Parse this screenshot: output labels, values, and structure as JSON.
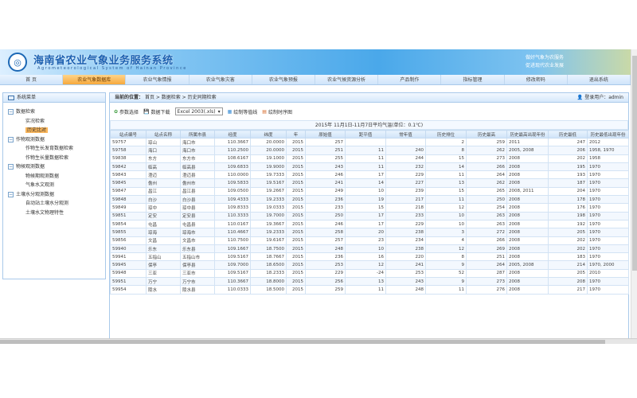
{
  "header": {
    "title": "海南省农业气象业务服务系统",
    "subtitle": "Agrometeorological System of Hainan Province",
    "slogan_line1": "做好气象为农服务",
    "slogan_line2": "促进现代农业发展"
  },
  "nav": [
    "首 页",
    "农业气象数据库",
    "农业气象情报",
    "农业气象灾害",
    "农业气象预报",
    "农业气候资源分析",
    "产品制作",
    "指标管理",
    "修改密码",
    "退出系统"
  ],
  "nav_active": 1,
  "sidebar": {
    "title": "系统菜单",
    "groups": [
      {
        "label": "数据检索",
        "items": [
          "实况检索",
          "历史比对"
        ]
      },
      {
        "label": "作物观测数据",
        "items": [
          "作物生长发育数据检索",
          "作物生长量数据检索"
        ]
      },
      {
        "label": "物候观测数据",
        "items": [
          "物候期观测数据",
          "气象水文观测"
        ]
      },
      {
        "label": "土壤水分观测数据",
        "items": [
          "自动站土壤水分观测",
          "土壤水文物理特性"
        ]
      }
    ],
    "selected": "历史比对"
  },
  "breadcrumb": {
    "label": "当前的位置：",
    "path": "首页 > 数据检索 > 历史同期检索"
  },
  "user": {
    "label": "登录用户：admin"
  },
  "toolbar": {
    "params": "参数选择",
    "download": "数据下载",
    "format": "Excel 2003(.xls)",
    "isoline": "绘制等值线",
    "timeseries": "绘制时序图"
  },
  "table": {
    "caption": "2015年 11月1日-11月7日平均气温(单位：0.1℃)",
    "columns": [
      "站点编号",
      "站点名称",
      "所属市县",
      "经度",
      "纬度",
      "年",
      "原始值",
      "距平值",
      "常年值",
      "历史排位",
      "历史最高",
      "历史最高出现年份",
      "历史最低",
      "历史最低出现年份"
    ],
    "rows": [
      [
        "59757",
        "琼山",
        "海口市",
        "110.3667",
        "20.0000",
        "2015",
        "257",
        "",
        "",
        "2",
        "259",
        "2011",
        "247",
        "2012"
      ],
      [
        "59758",
        "海口",
        "海口市",
        "110.2500",
        "20.0000",
        "2015",
        "251",
        "11",
        "240",
        "8",
        "262",
        "2005, 2008",
        "206",
        "1958, 1970"
      ],
      [
        "59838",
        "东方",
        "东方市",
        "108.6167",
        "19.1000",
        "2015",
        "255",
        "11",
        "244",
        "15",
        "273",
        "2008",
        "202",
        "1958"
      ],
      [
        "59842",
        "临高",
        "临高县",
        "109.6833",
        "19.9000",
        "2015",
        "243",
        "11",
        "232",
        "14",
        "266",
        "2008",
        "195",
        "1970"
      ],
      [
        "59843",
        "澄迈",
        "澄迈县",
        "110.0000",
        "19.7333",
        "2015",
        "246",
        "17",
        "229",
        "11",
        "264",
        "2008",
        "193",
        "1970"
      ],
      [
        "59845",
        "儋州",
        "儋州市",
        "109.5833",
        "19.5167",
        "2015",
        "241",
        "14",
        "227",
        "13",
        "262",
        "2008",
        "187",
        "1970"
      ],
      [
        "59847",
        "昌江",
        "昌江县",
        "109.0500",
        "19.2667",
        "2015",
        "249",
        "10",
        "239",
        "15",
        "265",
        "2008, 2011",
        "204",
        "1970"
      ],
      [
        "59848",
        "白沙",
        "白沙县",
        "109.4333",
        "19.2333",
        "2015",
        "236",
        "19",
        "217",
        "11",
        "250",
        "2008",
        "178",
        "1970"
      ],
      [
        "59849",
        "琼中",
        "琼中县",
        "109.8333",
        "19.0333",
        "2015",
        "233",
        "15",
        "218",
        "12",
        "254",
        "2008",
        "176",
        "1970"
      ],
      [
        "59851",
        "定安",
        "定安县",
        "110.3333",
        "19.7000",
        "2015",
        "250",
        "17",
        "233",
        "10",
        "263",
        "2008",
        "198",
        "1970"
      ],
      [
        "59854",
        "屯昌",
        "屯昌县",
        "110.0167",
        "19.3667",
        "2015",
        "246",
        "17",
        "229",
        "10",
        "263",
        "2008",
        "192",
        "1970"
      ],
      [
        "59855",
        "琼海",
        "琼海市",
        "110.4667",
        "19.2333",
        "2015",
        "258",
        "20",
        "238",
        "3",
        "272",
        "2008",
        "205",
        "1970"
      ],
      [
        "59856",
        "文昌",
        "文昌市",
        "110.7500",
        "19.6167",
        "2015",
        "257",
        "23",
        "234",
        "4",
        "266",
        "2008",
        "202",
        "1970"
      ],
      [
        "59940",
        "乐东",
        "乐东县",
        "109.1667",
        "18.7500",
        "2015",
        "248",
        "10",
        "238",
        "12",
        "269",
        "2008",
        "202",
        "1970"
      ],
      [
        "59941",
        "五指山",
        "五指山市",
        "109.5167",
        "18.7667",
        "2015",
        "236",
        "16",
        "220",
        "8",
        "251",
        "2008",
        "183",
        "1970"
      ],
      [
        "59945",
        "保亭",
        "保亭县",
        "109.7000",
        "18.6500",
        "2015",
        "253",
        "12",
        "241",
        "9",
        "264",
        "2005, 2008",
        "214",
        "1970, 2000"
      ],
      [
        "59948",
        "三亚",
        "三亚市",
        "109.5167",
        "18.2333",
        "2015",
        "229",
        "-24",
        "253",
        "52",
        "287",
        "2008",
        "205",
        "2010"
      ],
      [
        "59951",
        "万宁",
        "万宁市",
        "110.3667",
        "18.8000",
        "2015",
        "256",
        "13",
        "243",
        "9",
        "273",
        "2008",
        "208",
        "1970"
      ],
      [
        "59954",
        "陵水",
        "陵水县",
        "110.0333",
        "18.5000",
        "2015",
        "259",
        "11",
        "248",
        "11",
        "276",
        "2008",
        "217",
        "1970"
      ]
    ]
  }
}
